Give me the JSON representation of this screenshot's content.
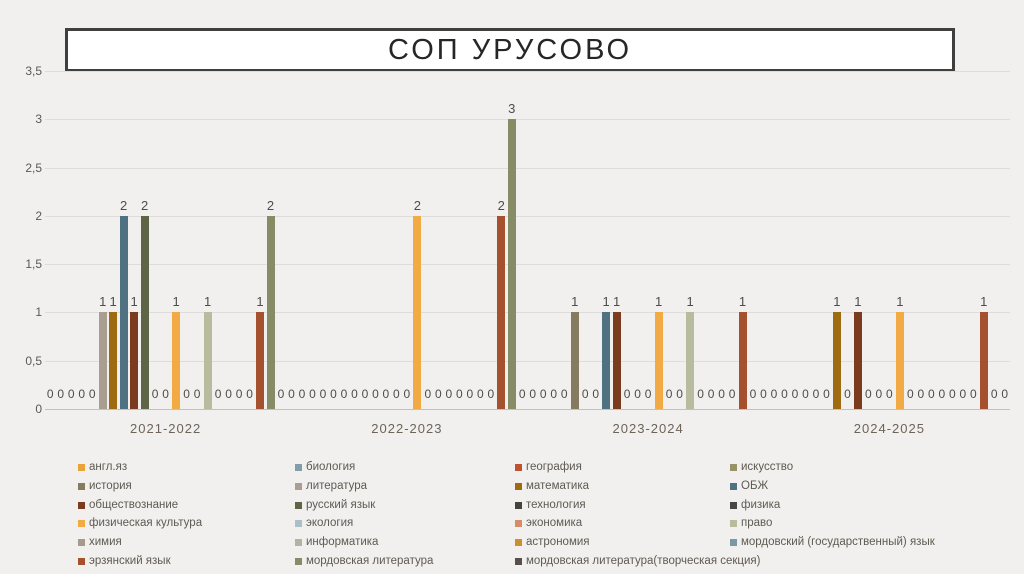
{
  "title": "СОП УРУСОВО",
  "chart_data": {
    "type": "bar",
    "title": "СОП УРУСОВО",
    "categories": [
      "2021-2022",
      "2022-2023",
      "2023-2024",
      "2024-2025"
    ],
    "y_axis": {
      "min": 0,
      "max": 3.5,
      "step": 0.5,
      "tick_labels": [
        "0",
        "0,5",
        "1",
        "1,5",
        "2",
        "2,5",
        "3",
        "3,5"
      ]
    },
    "grid": true,
    "legend_position": "bottom",
    "data_labels": true,
    "series": [
      {
        "name": "англ.яз",
        "color": "#e8a33d",
        "values": [
          0,
          0,
          0,
          0
        ]
      },
      {
        "name": "биология",
        "color": "#7f9dab",
        "values": [
          0,
          0,
          0,
          0
        ]
      },
      {
        "name": "география",
        "color": "#c0532f",
        "values": [
          0,
          0,
          0,
          0
        ]
      },
      {
        "name": "искусство",
        "color": "#999167",
        "values": [
          0,
          0,
          0,
          0
        ]
      },
      {
        "name": "история",
        "color": "#857b5e",
        "values": [
          0,
          0,
          1,
          0
        ]
      },
      {
        "name": "литература",
        "color": "#a89f91",
        "values": [
          1,
          0,
          0,
          0
        ]
      },
      {
        "name": "математика",
        "color": "#9e6a12",
        "values": [
          1,
          0,
          0,
          1
        ]
      },
      {
        "name": "ОБЖ",
        "color": "#4f7181",
        "values": [
          2,
          0,
          1,
          0
        ]
      },
      {
        "name": "обществознание",
        "color": "#7a3b1e",
        "values": [
          1,
          0,
          1,
          1
        ]
      },
      {
        "name": "русский язык",
        "color": "#5e6547",
        "values": [
          2,
          0,
          0,
          0
        ]
      },
      {
        "name": "технология",
        "color": "#45443c",
        "values": [
          0,
          0,
          0,
          0
        ]
      },
      {
        "name": "физика",
        "color": "#474747",
        "values": [
          0,
          0,
          0,
          0
        ]
      },
      {
        "name": "физическая культура",
        "color": "#f2ab44",
        "values": [
          1,
          2,
          1,
          1
        ]
      },
      {
        "name": "экология",
        "color": "#a9c0c8",
        "values": [
          0,
          0,
          0,
          0
        ]
      },
      {
        "name": "экономика",
        "color": "#d68d66",
        "values": [
          0,
          0,
          0,
          0
        ]
      },
      {
        "name": "право",
        "color": "#b7bc9e",
        "values": [
          1,
          0,
          1,
          0
        ]
      },
      {
        "name": "химия",
        "color": "#a59a8c",
        "values": [
          0,
          0,
          0,
          0
        ]
      },
      {
        "name": "информатика",
        "color": "#b3b3a4",
        "values": [
          0,
          0,
          0,
          0
        ]
      },
      {
        "name": "астрономия",
        "color": "#cc8f2e",
        "values": [
          0,
          0,
          0,
          0
        ]
      },
      {
        "name": "мордовский (государственный) язык",
        "color": "#7b99a5",
        "values": [
          0,
          0,
          0,
          0
        ]
      },
      {
        "name": "эрзянский язык",
        "color": "#a5512e",
        "values": [
          1,
          2,
          1,
          1
        ]
      },
      {
        "name": "мордовская литература",
        "color": "#868c66",
        "values": [
          2,
          3,
          0,
          0
        ]
      },
      {
        "name": "мордовская литература(творческая секция)",
        "color": "#57504a",
        "values": [
          0,
          0,
          0,
          0
        ]
      }
    ]
  }
}
